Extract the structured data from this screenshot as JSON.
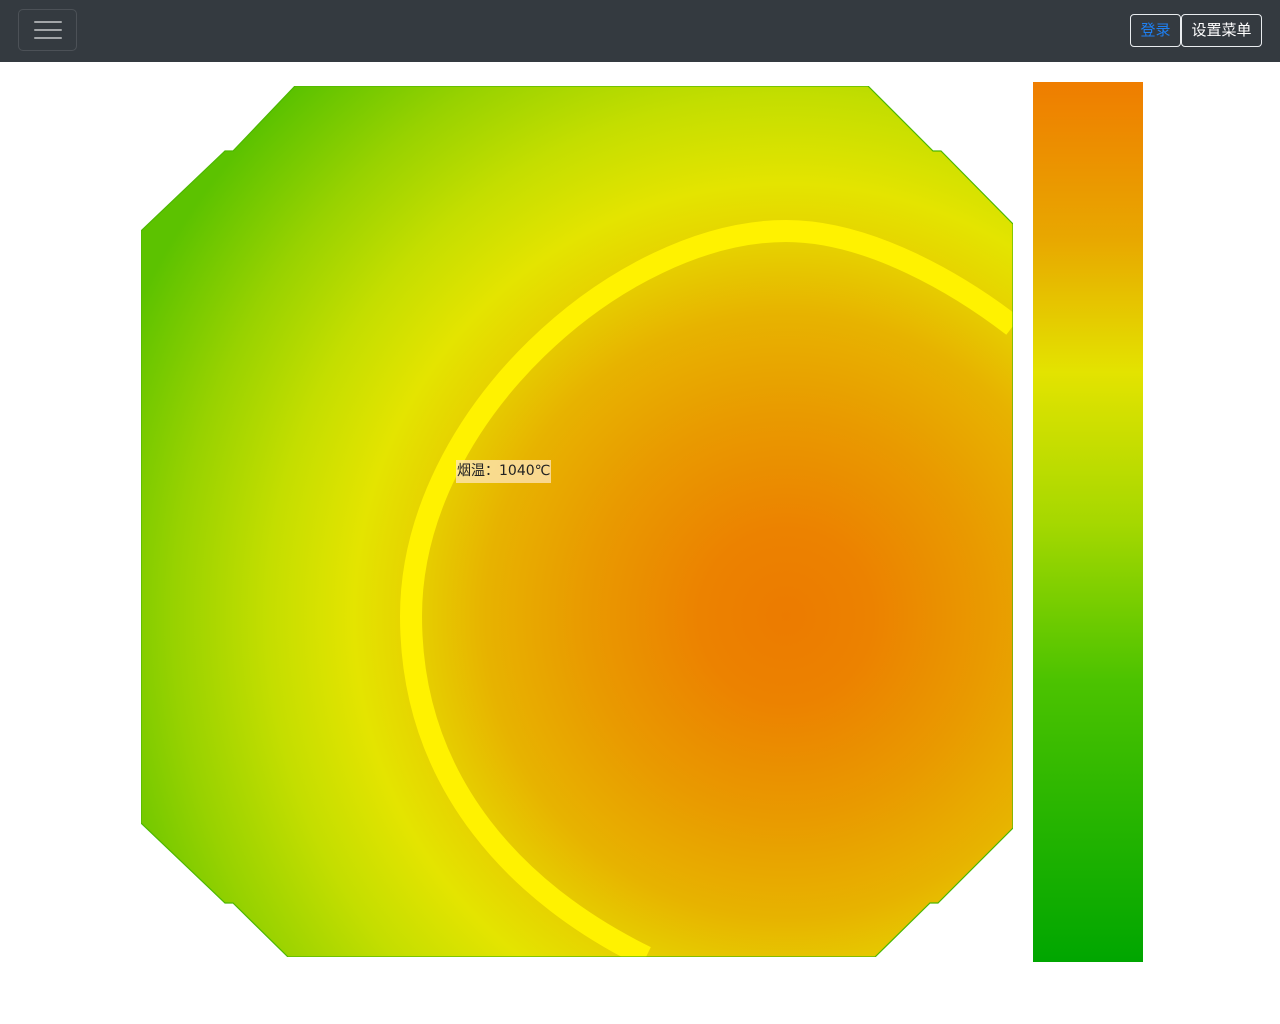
{
  "navbar": {
    "toggler_icon": "hamburger-icon",
    "login_label": "登录",
    "settings_menu_label": "设置菜单"
  },
  "heatmap": {
    "temperature_label": "烟温：1040℃",
    "colors": {
      "hot": "#ec7b00",
      "mid": "#e8b000",
      "warm": "#e6e600",
      "cool": "#8fd000",
      "cold": "#5cc200",
      "isotherm": "#fff200"
    }
  },
  "legend": {
    "colors": [
      "#ef7d00",
      "#e8a800",
      "#e3e300",
      "#9bd500",
      "#4cc300",
      "#00a600"
    ]
  }
}
